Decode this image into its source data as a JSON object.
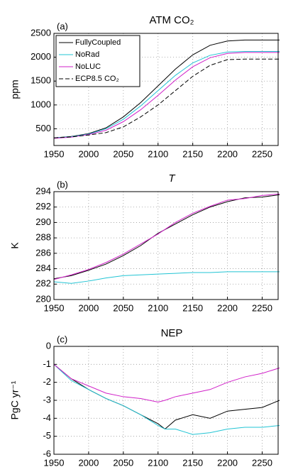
{
  "chart_data": [
    {
      "type": "line",
      "panel": "(a)",
      "title": "ATM CO₂",
      "y_label": "ppm",
      "x": [
        1950,
        1975,
        2000,
        2025,
        2050,
        2075,
        2100,
        2125,
        2150,
        2175,
        2200,
        2225,
        2250,
        2275
      ],
      "series": [
        {
          "name": "FullyCoupled",
          "color": "#000000",
          "values": [
            310,
            340,
            400,
            520,
            750,
            1050,
            1400,
            1750,
            2050,
            2250,
            2340,
            2360,
            2360,
            2360
          ]
        },
        {
          "name": "NoRad",
          "color": "#22c4d4",
          "values": [
            310,
            335,
            390,
            500,
            700,
            980,
            1300,
            1620,
            1880,
            2040,
            2110,
            2120,
            2120,
            2120
          ]
        },
        {
          "name": "NoLUC",
          "color": "#d020c8",
          "values": [
            300,
            325,
            380,
            470,
            650,
            900,
            1200,
            1520,
            1800,
            1990,
            2080,
            2100,
            2100,
            2100
          ]
        },
        {
          "name": "ECP8.5 CO₂",
          "color": "#000000",
          "linestyle": "dashed",
          "values": [
            310,
            330,
            370,
            420,
            540,
            750,
            1000,
            1300,
            1600,
            1830,
            1950,
            1960,
            1960,
            1960
          ]
        }
      ],
      "xlim": [
        1950,
        2273
      ],
      "xticks": [
        1950,
        2000,
        2050,
        2100,
        2150,
        2200,
        2250
      ],
      "ylim": [
        150,
        2500
      ],
      "yticks": [
        500,
        1000,
        1500,
        2000,
        2500
      ],
      "grid": true,
      "legend": "upper left"
    },
    {
      "type": "line",
      "panel": "(b)",
      "title": "T",
      "y_label": "K",
      "x": [
        1950,
        1975,
        2000,
        2025,
        2050,
        2075,
        2100,
        2125,
        2150,
        2175,
        2200,
        2225,
        2250,
        2275
      ],
      "series": [
        {
          "color": "#000000",
          "values": [
            282.7,
            283.1,
            283.8,
            284.6,
            285.7,
            287,
            288.6,
            289.8,
            291,
            292,
            292.7,
            293.2,
            293.3,
            293.6
          ]
        },
        {
          "color": "#d020c8",
          "values": [
            282.6,
            283.2,
            283.9,
            284.8,
            285.9,
            287.2,
            288.5,
            290,
            291.2,
            292.1,
            292.9,
            293.1,
            293.5,
            293.7
          ]
        },
        {
          "color": "#22c4d4",
          "values": [
            282.3,
            282.1,
            282.4,
            282.8,
            283.1,
            283.2,
            283.3,
            283.4,
            283.5,
            283.5,
            283.6,
            283.6,
            283.6,
            283.6
          ]
        }
      ],
      "xlim": [
        1950,
        2273
      ],
      "xticks": [
        1950,
        2000,
        2050,
        2100,
        2150,
        2200,
        2250
      ],
      "ylim": [
        280,
        294
      ],
      "yticks": [
        280,
        282,
        284,
        286,
        288,
        290,
        292,
        294
      ],
      "grid": true
    },
    {
      "type": "line",
      "panel": "(c)",
      "title": "NEP",
      "y_label": "PgC yr⁻¹",
      "x": [
        1950,
        1975,
        2000,
        2025,
        2050,
        2075,
        2100,
        2110,
        2125,
        2150,
        2175,
        2200,
        2225,
        2250,
        2275
      ],
      "series": [
        {
          "color": "#000000",
          "values": [
            -1,
            -1.8,
            -2.4,
            -2.9,
            -3.3,
            -3.8,
            -4.3,
            -4.6,
            -4.1,
            -3.8,
            -4.0,
            -3.6,
            -3.5,
            -3.4,
            -3.0
          ]
        },
        {
          "color": "#22c4d4",
          "values": [
            -1,
            -1.9,
            -2.4,
            -2.9,
            -3.3,
            -3.8,
            -4.4,
            -4.6,
            -4.6,
            -4.9,
            -4.8,
            -4.6,
            -4.5,
            -4.5,
            -4.4
          ]
        },
        {
          "color": "#d020c8",
          "values": [
            -1,
            -1.8,
            -2.2,
            -2.6,
            -2.8,
            -2.9,
            -3.1,
            -3.0,
            -2.8,
            -2.6,
            -2.4,
            -2.0,
            -1.7,
            -1.5,
            -1.2
          ]
        }
      ],
      "xlim": [
        1950,
        2273
      ],
      "xticks": [
        1950,
        2000,
        2050,
        2100,
        2150,
        2200,
        2250
      ],
      "ylim": [
        -6,
        0
      ],
      "yticks": [
        -6,
        -5,
        -4,
        -3,
        -2,
        -1,
        0
      ],
      "grid": true
    }
  ]
}
